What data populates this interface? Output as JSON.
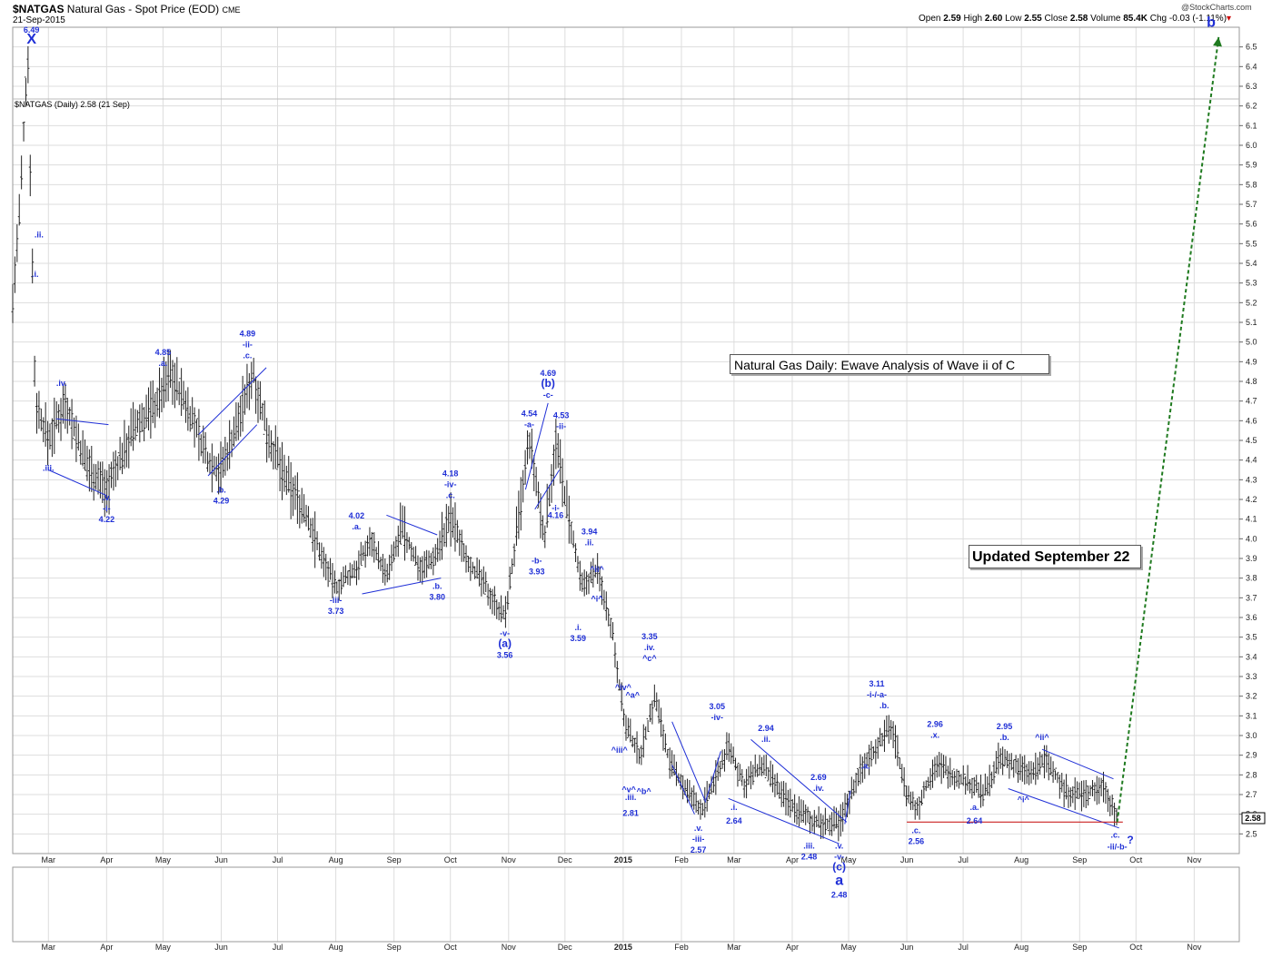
{
  "header": {
    "symbol": "$NATGAS",
    "name": "Natural Gas - Spot Price (EOD)",
    "exchange": "CME",
    "date": "21-Sep-2015",
    "ohlc": {
      "open_label": "Open",
      "open": "2.59",
      "high_label": "High",
      "high": "2.60",
      "low_label": "Low",
      "low": "2.55",
      "close_label": "Close",
      "close": "2.58",
      "volume_label": "Volume",
      "volume": "85.4K",
      "chg_label": "Chg",
      "chg": "-0.03 (-1.11%)"
    },
    "credit": "@StockCharts.com",
    "series_label": "$NATGAS (Daily) 2.58 (21 Sep)"
  },
  "annotations_boxes": {
    "title_box": "Natural Gas Daily: Ewave Analysis of Wave ii of C",
    "updated_box": "Updated September 22"
  },
  "chart_data": {
    "type": "ohlc",
    "ylim": [
      2.4,
      6.6
    ],
    "y_ticks": [
      "2.5",
      "2.6",
      "2.7",
      "2.8",
      "2.9",
      "3.0",
      "3.1",
      "3.2",
      "3.3",
      "3.4",
      "3.5",
      "3.6",
      "3.7",
      "3.8",
      "3.9",
      "4.0",
      "4.1",
      "4.2",
      "4.3",
      "4.4",
      "4.5",
      "4.6",
      "4.7",
      "4.8",
      "4.9",
      "5.0",
      "5.1",
      "5.2",
      "5.3",
      "5.4",
      "5.5",
      "5.6",
      "5.7",
      "5.8",
      "5.9",
      "6.0",
      "6.1",
      "6.2",
      "6.3",
      "6.4",
      "6.5"
    ],
    "x_ticks": [
      {
        "label": "Mar",
        "x": "2014-03-01"
      },
      {
        "label": "Apr",
        "x": "2014-04-01"
      },
      {
        "label": "May",
        "x": "2014-05-01"
      },
      {
        "label": "Jun",
        "x": "2014-06-01"
      },
      {
        "label": "Jul",
        "x": "2014-07-01"
      },
      {
        "label": "Aug",
        "x": "2014-08-01"
      },
      {
        "label": "Sep",
        "x": "2014-09-01"
      },
      {
        "label": "Oct",
        "x": "2014-10-01"
      },
      {
        "label": "Nov",
        "x": "2014-11-01"
      },
      {
        "label": "Dec",
        "x": "2014-12-01"
      },
      {
        "label": "2015",
        "x": "2015-01-01"
      },
      {
        "label": "Feb",
        "x": "2015-02-01"
      },
      {
        "label": "Mar",
        "x": "2015-03-01"
      },
      {
        "label": "Apr",
        "x": "2015-04-01"
      },
      {
        "label": "May",
        "x": "2015-05-01"
      },
      {
        "label": "Jun",
        "x": "2015-06-01"
      },
      {
        "label": "Jul",
        "x": "2015-07-01"
      },
      {
        "label": "Aug",
        "x": "2015-08-01"
      },
      {
        "label": "Sep",
        "x": "2015-09-01"
      },
      {
        "label": "Oct",
        "x": "2015-10-01"
      },
      {
        "label": "Nov",
        "x": "2015-11-01"
      }
    ],
    "last_value": "2.58",
    "price_path": [
      [
        "2014-02-10",
        5.2
      ],
      [
        "2014-02-14",
        5.7
      ],
      [
        "2014-02-18",
        6.49
      ],
      [
        "2014-02-22",
        4.7
      ],
      [
        "2014-03-01",
        4.5
      ],
      [
        "2014-03-10",
        4.7
      ],
      [
        "2014-03-20",
        4.4
      ],
      [
        "2014-04-01",
        4.25
      ],
      [
        "2014-04-15",
        4.55
      ],
      [
        "2014-04-28",
        4.7
      ],
      [
        "2014-05-05",
        4.85
      ],
      [
        "2014-05-15",
        4.65
      ],
      [
        "2014-05-25",
        4.4
      ],
      [
        "2014-06-01",
        4.35
      ],
      [
        "2014-06-10",
        4.6
      ],
      [
        "2014-06-18",
        4.85
      ],
      [
        "2014-06-25",
        4.55
      ],
      [
        "2014-07-05",
        4.3
      ],
      [
        "2014-07-15",
        4.15
      ],
      [
        "2014-07-25",
        3.9
      ],
      [
        "2014-08-01",
        3.75
      ],
      [
        "2014-08-12",
        3.85
      ],
      [
        "2014-08-20",
        4.0
      ],
      [
        "2014-08-28",
        3.8
      ],
      [
        "2014-09-05",
        4.05
      ],
      [
        "2014-09-15",
        3.85
      ],
      [
        "2014-09-22",
        3.9
      ],
      [
        "2014-10-01",
        4.1
      ],
      [
        "2014-10-10",
        3.9
      ],
      [
        "2014-10-20",
        3.75
      ],
      [
        "2014-10-30",
        3.6
      ],
      [
        "2014-11-08",
        4.2
      ],
      [
        "2014-11-12",
        4.5
      ],
      [
        "2014-11-20",
        4.0
      ],
      [
        "2014-11-26",
        4.5
      ],
      [
        "2014-12-03",
        4.1
      ],
      [
        "2014-12-10",
        3.75
      ],
      [
        "2014-12-18",
        3.85
      ],
      [
        "2014-12-26",
        3.55
      ],
      [
        "2015-01-02",
        3.05
      ],
      [
        "2015-01-10",
        2.9
      ],
      [
        "2015-01-18",
        3.2
      ],
      [
        "2015-01-26",
        2.85
      ],
      [
        "2015-02-05",
        2.7
      ],
      [
        "2015-02-12",
        2.62
      ],
      [
        "2015-02-20",
        2.8
      ],
      [
        "2015-02-26",
        2.95
      ],
      [
        "2015-03-06",
        2.75
      ],
      [
        "2015-03-16",
        2.85
      ],
      [
        "2015-03-26",
        2.7
      ],
      [
        "2015-04-06",
        2.6
      ],
      [
        "2015-04-16",
        2.55
      ],
      [
        "2015-04-26",
        2.55
      ],
      [
        "2015-05-06",
        2.8
      ],
      [
        "2015-05-16",
        2.95
      ],
      [
        "2015-05-24",
        3.05
      ],
      [
        "2015-06-01",
        2.7
      ],
      [
        "2015-06-06",
        2.62
      ],
      [
        "2015-06-16",
        2.85
      ],
      [
        "2015-06-26",
        2.8
      ],
      [
        "2015-07-06",
        2.75
      ],
      [
        "2015-07-12",
        2.7
      ],
      [
        "2015-07-20",
        2.88
      ],
      [
        "2015-07-28",
        2.85
      ],
      [
        "2015-08-06",
        2.8
      ],
      [
        "2015-08-14",
        2.88
      ],
      [
        "2015-08-24",
        2.72
      ],
      [
        "2015-09-04",
        2.7
      ],
      [
        "2015-09-14",
        2.75
      ],
      [
        "2015-09-21",
        2.58
      ]
    ],
    "wave_labels": [
      {
        "text": "6.49",
        "x": "2014-02-20",
        "y": 6.49,
        "pos": "above2"
      },
      {
        "text": "X",
        "x": "2014-02-20",
        "y": 6.49,
        "pos": "above",
        "big": true
      },
      {
        "text": ".ii.",
        "x": "2014-02-24",
        "y": 5.55,
        "pos": "mid"
      },
      {
        "text": ".i.",
        "x": "2014-02-22",
        "y": 5.35,
        "pos": "mid"
      },
      {
        "text": ".iv.",
        "x": "2014-03-08",
        "y": 4.75,
        "pos": "above"
      },
      {
        "text": ".iii.",
        "x": "2014-03-01",
        "y": 4.4,
        "pos": "below"
      },
      {
        "text": ".v.",
        "x": "2014-04-01",
        "y": 4.25,
        "pos": "below"
      },
      {
        "text": "-i-",
        "x": "2014-04-01",
        "y": 4.25,
        "pos": "below2"
      },
      {
        "text": "4.22",
        "x": "2014-04-01",
        "y": 4.25,
        "pos": "below3"
      },
      {
        "text": "4.85",
        "x": "2014-05-01",
        "y": 4.85,
        "pos": "above2"
      },
      {
        "text": ".a.",
        "x": "2014-05-01",
        "y": 4.85,
        "pos": "above"
      },
      {
        "text": ".b.",
        "x": "2014-06-01",
        "y": 4.29,
        "pos": "below"
      },
      {
        "text": "4.29",
        "x": "2014-06-01",
        "y": 4.29,
        "pos": "below2"
      },
      {
        "text": "4.89",
        "x": "2014-06-15",
        "y": 4.89,
        "pos": "above3"
      },
      {
        "text": "-ii-",
        "x": "2014-06-15",
        "y": 4.89,
        "pos": "above2"
      },
      {
        "text": ".c.",
        "x": "2014-06-15",
        "y": 4.89,
        "pos": "above"
      },
      {
        "text": "4.02",
        "x": "2014-08-12",
        "y": 4.02,
        "pos": "above2"
      },
      {
        "text": ".a.",
        "x": "2014-08-12",
        "y": 4.02,
        "pos": "above"
      },
      {
        "text": "-iii-",
        "x": "2014-08-01",
        "y": 3.73,
        "pos": "below"
      },
      {
        "text": "3.73",
        "x": "2014-08-01",
        "y": 3.73,
        "pos": "below2"
      },
      {
        "text": ".b.",
        "x": "2014-09-24",
        "y": 3.8,
        "pos": "below"
      },
      {
        "text": "3.80",
        "x": "2014-09-24",
        "y": 3.8,
        "pos": "below2"
      },
      {
        "text": "4.18",
        "x": "2014-10-01",
        "y": 4.18,
        "pos": "above3"
      },
      {
        "text": "-iv-",
        "x": "2014-10-01",
        "y": 4.18,
        "pos": "above2"
      },
      {
        "text": ".c.",
        "x": "2014-10-01",
        "y": 4.18,
        "pos": "above"
      },
      {
        "text": "-v-",
        "x": "2014-10-30",
        "y": 3.56,
        "pos": "below"
      },
      {
        "text": "(a)",
        "x": "2014-10-30",
        "y": 3.56,
        "pos": "below2",
        "med": true
      },
      {
        "text": "3.56",
        "x": "2014-10-30",
        "y": 3.56,
        "pos": "below3"
      },
      {
        "text": "4.54",
        "x": "2014-11-12",
        "y": 4.54,
        "pos": "above2"
      },
      {
        "text": "-a-",
        "x": "2014-11-12",
        "y": 4.54,
        "pos": "above"
      },
      {
        "text": "4.69",
        "x": "2014-11-22",
        "y": 4.69,
        "pos": "above3"
      },
      {
        "text": "(b)",
        "x": "2014-11-22",
        "y": 4.69,
        "pos": "above2",
        "med": true
      },
      {
        "text": "-c-",
        "x": "2014-11-22",
        "y": 4.69,
        "pos": "above"
      },
      {
        "text": "4.53",
        "x": "2014-11-29",
        "y": 4.53,
        "pos": "above2"
      },
      {
        "text": "-ii-",
        "x": "2014-11-29",
        "y": 4.53,
        "pos": "above"
      },
      {
        "text": "-b-",
        "x": "2014-11-16",
        "y": 3.93,
        "pos": "below"
      },
      {
        "text": "3.93",
        "x": "2014-11-16",
        "y": 3.93,
        "pos": "below2"
      },
      {
        "text": "-i-",
        "x": "2014-11-26",
        "y": 4.16,
        "pos": "mid"
      },
      {
        "text": "4.16",
        "x": "2014-11-26",
        "y": 4.16,
        "pos": "below"
      },
      {
        "text": "3.94",
        "x": "2014-12-14",
        "y": 3.94,
        "pos": "above2"
      },
      {
        "text": ".ii.",
        "x": "2014-12-14",
        "y": 3.94,
        "pos": "above"
      },
      {
        "text": "^ii^",
        "x": "2014-12-18",
        "y": 3.85,
        "pos": "mid"
      },
      {
        "text": "^i^",
        "x": "2014-12-18",
        "y": 3.7,
        "pos": "mid"
      },
      {
        "text": ".i.",
        "x": "2014-12-08",
        "y": 3.59,
        "pos": "below"
      },
      {
        "text": "3.59",
        "x": "2014-12-08",
        "y": 3.59,
        "pos": "below2"
      },
      {
        "text": "3.35",
        "x": "2015-01-15",
        "y": 3.35,
        "pos": "above3"
      },
      {
        "text": ".iv.",
        "x": "2015-01-15",
        "y": 3.35,
        "pos": "above2"
      },
      {
        "text": "^c^",
        "x": "2015-01-15",
        "y": 3.35,
        "pos": "above"
      },
      {
        "text": "^iv^",
        "x": "2015-01-01",
        "y": 3.25,
        "pos": "mid"
      },
      {
        "text": "^a^",
        "x": "2015-01-06",
        "y": 3.21,
        "pos": "mid"
      },
      {
        "text": "^iii^",
        "x": "2014-12-30",
        "y": 2.93,
        "pos": "mid"
      },
      {
        "text": "^v^",
        "x": "2015-01-04",
        "y": 2.73,
        "pos": "mid"
      },
      {
        "text": "^b^",
        "x": "2015-01-12",
        "y": 2.72,
        "pos": "mid"
      },
      {
        "text": ".iii.",
        "x": "2015-01-05",
        "y": 2.69,
        "pos": "mid"
      },
      {
        "text": "2.81",
        "x": "2015-01-05",
        "y": 2.61,
        "pos": "mid"
      },
      {
        "text": ".v.",
        "x": "2015-02-10",
        "y": 2.57,
        "pos": "below"
      },
      {
        "text": "-iii-",
        "x": "2015-02-10",
        "y": 2.57,
        "pos": "below2"
      },
      {
        "text": "2.57",
        "x": "2015-02-10",
        "y": 2.57,
        "pos": "below3"
      },
      {
        "text": "3.05",
        "x": "2015-02-20",
        "y": 3.05,
        "pos": "above2"
      },
      {
        "text": "-iv-",
        "x": "2015-02-20",
        "y": 3.05,
        "pos": "above"
      },
      {
        "text": ".i.",
        "x": "2015-03-01",
        "y": 2.64,
        "pos": "mid"
      },
      {
        "text": "2.64",
        "x": "2015-03-01",
        "y": 2.57,
        "pos": "mid"
      },
      {
        "text": "2.94",
        "x": "2015-03-18",
        "y": 2.94,
        "pos": "above2"
      },
      {
        "text": ".ii.",
        "x": "2015-03-18",
        "y": 2.94,
        "pos": "above"
      },
      {
        "text": "2.69",
        "x": "2015-04-15",
        "y": 2.69,
        "pos": "above2"
      },
      {
        "text": ".iv.",
        "x": "2015-04-15",
        "y": 2.69,
        "pos": "above"
      },
      {
        "text": ".iii.",
        "x": "2015-04-10",
        "y": 2.48,
        "pos": "below"
      },
      {
        "text": "2.48",
        "x": "2015-04-10",
        "y": 2.48,
        "pos": "below2"
      },
      {
        "text": ".v.",
        "x": "2015-04-26",
        "y": 2.48,
        "pos": "below"
      },
      {
        "text": "-v-",
        "x": "2015-04-26",
        "y": 2.48,
        "pos": "below2"
      },
      {
        "text": "(c)",
        "x": "2015-04-26",
        "y": 2.48,
        "pos": "below3",
        "med": true
      },
      {
        "text": "a",
        "x": "2015-04-26",
        "y": 2.48,
        "pos": "below4",
        "big": true
      },
      {
        "text": "2.48",
        "x": "2015-04-26",
        "y": 2.48,
        "pos": "below5"
      },
      {
        "text": "3.11",
        "x": "2015-05-16",
        "y": 3.11,
        "pos": "above3"
      },
      {
        "text": "-i-/-a-",
        "x": "2015-05-16",
        "y": 3.11,
        "pos": "above2"
      },
      {
        "text": ".b.",
        "x": "2015-05-20",
        "y": 3.11,
        "pos": "above"
      },
      {
        "text": ".a.",
        "x": "2015-05-10",
        "y": 2.85,
        "pos": "mid"
      },
      {
        "text": ".c.",
        "x": "2015-06-06",
        "y": 2.56,
        "pos": "below"
      },
      {
        "text": "2.56",
        "x": "2015-06-06",
        "y": 2.56,
        "pos": "below2"
      },
      {
        "text": "2.96",
        "x": "2015-06-16",
        "y": 2.96,
        "pos": "above2"
      },
      {
        "text": ".x.",
        "x": "2015-06-16",
        "y": 2.96,
        "pos": "above"
      },
      {
        "text": ".a.",
        "x": "2015-07-07",
        "y": 2.64,
        "pos": "mid"
      },
      {
        "text": "2.64",
        "x": "2015-07-07",
        "y": 2.57,
        "pos": "mid"
      },
      {
        "text": "2.95",
        "x": "2015-07-23",
        "y": 2.95,
        "pos": "above2"
      },
      {
        "text": ".b.",
        "x": "2015-07-23",
        "y": 2.95,
        "pos": "above"
      },
      {
        "text": "^ii^",
        "x": "2015-08-12",
        "y": 2.95,
        "pos": "above"
      },
      {
        "text": "^i^",
        "x": "2015-08-02",
        "y": 2.68,
        "pos": "mid"
      },
      {
        "text": ".c.",
        "x": "2015-09-20",
        "y": 2.5,
        "pos": "mid"
      },
      {
        "text": "-ii/-b-",
        "x": "2015-09-21",
        "y": 2.44,
        "pos": "mid"
      },
      {
        "text": "?",
        "x": "2015-09-28",
        "y": 2.47,
        "pos": "mid",
        "med": true
      },
      {
        "text": "b",
        "x": "2015-11-10",
        "y": 6.62,
        "pos": "mid",
        "big": true
      }
    ],
    "trendlines": [
      [
        [
          "2014-03-01",
          4.35
        ],
        [
          "2014-04-01",
          4.22
        ]
      ],
      [
        [
          "2014-03-05",
          4.61
        ],
        [
          "2014-04-02",
          4.58
        ]
      ],
      [
        [
          "2014-05-20",
          4.53
        ],
        [
          "2014-06-25",
          4.87
        ]
      ],
      [
        [
          "2014-05-25",
          4.32
        ],
        [
          "2014-06-20",
          4.58
        ]
      ],
      [
        [
          "2014-08-15",
          3.72
        ],
        [
          "2014-09-26",
          3.8
        ]
      ],
      [
        [
          "2014-08-28",
          4.12
        ],
        [
          "2014-09-24",
          4.02
        ]
      ],
      [
        [
          "2014-11-10",
          4.25
        ],
        [
          "2014-11-22",
          4.69
        ]
      ],
      [
        [
          "2014-11-15",
          4.15
        ],
        [
          "2014-11-28",
          4.35
        ]
      ],
      [
        [
          "2015-01-27",
          3.07
        ],
        [
          "2015-02-14",
          2.66
        ]
      ],
      [
        [
          "2015-01-27",
          2.85
        ],
        [
          "2015-02-08",
          2.6
        ]
      ],
      [
        [
          "2015-02-14",
          2.67
        ],
        [
          "2015-02-22",
          2.92
        ]
      ],
      [
        [
          "2015-02-26",
          2.68
        ],
        [
          "2015-04-26",
          2.45
        ]
      ],
      [
        [
          "2015-03-10",
          2.98
        ],
        [
          "2015-04-30",
          2.56
        ]
      ],
      [
        [
          "2015-04-29",
          2.55
        ],
        [
          "2015-05-02",
          2.72
        ]
      ],
      [
        [
          "2015-07-25",
          2.73
        ],
        [
          "2015-09-22",
          2.53
        ]
      ],
      [
        [
          "2015-08-12",
          2.93
        ],
        [
          "2015-09-19",
          2.78
        ]
      ]
    ],
    "support_line": {
      "from": [
        "2015-06-01",
        2.56
      ],
      "to": [
        "2015-09-24",
        2.56
      ],
      "color": "#cc2222"
    },
    "projection": {
      "from": [
        "2015-09-21",
        2.56
      ],
      "to": [
        "2015-11-14",
        6.55
      ],
      "color": "#1f7a1f"
    },
    "colors": {
      "wave_label": "#1f2fd6",
      "bars": "#222222",
      "grid": "#dddddd"
    }
  }
}
